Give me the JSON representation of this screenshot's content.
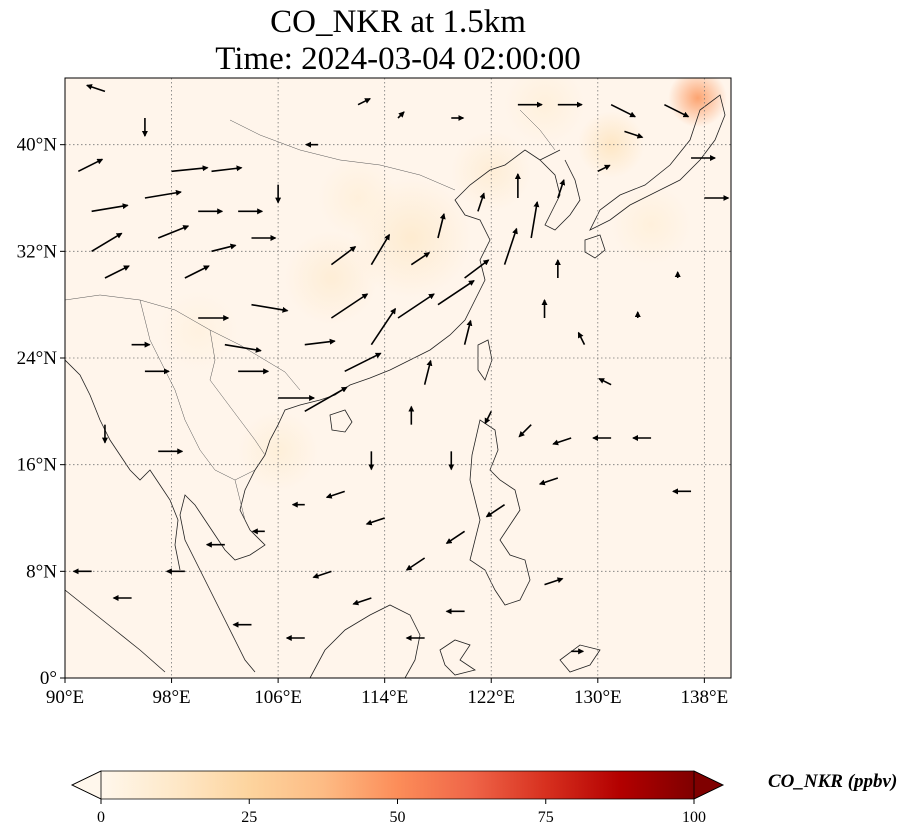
{
  "title": {
    "line1": "CO_NKR at 1.5km",
    "line2": "Time: 2024-03-04 02:00:00"
  },
  "map": {
    "projection": "PlateCarree",
    "lon_range": [
      90,
      140
    ],
    "lat_range": [
      0,
      45
    ],
    "gridline_style": "dotted gray",
    "coastlines": true,
    "background_color": "#fff5eb"
  },
  "axes": {
    "x_ticks": [
      "90°E",
      "98°E",
      "106°E",
      "114°E",
      "122°E",
      "130°E",
      "138°E"
    ],
    "y_ticks": [
      "0°",
      "8°N",
      "16°N",
      "24°N",
      "32°N",
      "40°N"
    ]
  },
  "colorbar": {
    "label": "CO_NKR (ppbv)",
    "ticks": [
      "0",
      "25",
      "50",
      "75",
      "100"
    ],
    "range": [
      0,
      100
    ],
    "colormap": "OrRd",
    "colors": [
      "#fff7ec",
      "#fee8c8",
      "#fdd49e",
      "#fdbb84",
      "#fc8d59",
      "#ef6548",
      "#d7301f",
      "#b30000",
      "#7f0000"
    ],
    "extend": "both"
  },
  "wind_field": {
    "description_units": "wind vectors at 1.5km",
    "vectors": [
      {
        "lon": 91,
        "lat": 38,
        "u": 2,
        "v": 1
      },
      {
        "lon": 92,
        "lat": 35,
        "u": 3,
        "v": 0.5
      },
      {
        "lon": 92,
        "lat": 32,
        "u": 2.5,
        "v": 1.5
      },
      {
        "lon": 93,
        "lat": 30,
        "u": 2,
        "v": 1
      },
      {
        "lon": 96,
        "lat": 36,
        "u": 3,
        "v": 0.5
      },
      {
        "lon": 97,
        "lat": 33,
        "u": 2.5,
        "v": 1
      },
      {
        "lon": 98,
        "lat": 38,
        "u": 3,
        "v": 0.3
      },
      {
        "lon": 100,
        "lat": 35,
        "u": 2,
        "v": 0
      },
      {
        "lon": 101,
        "lat": 38,
        "u": 2.5,
        "v": 0.3
      },
      {
        "lon": 103,
        "lat": 35,
        "u": 2,
        "v": 0
      },
      {
        "lon": 104,
        "lat": 33,
        "u": 2,
        "v": 0
      },
      {
        "lon": 101,
        "lat": 32,
        "u": 2,
        "v": 0.5
      },
      {
        "lon": 99,
        "lat": 30,
        "u": 2,
        "v": 1
      },
      {
        "lon": 100,
        "lat": 27,
        "u": 2.5,
        "v": 0
      },
      {
        "lon": 102,
        "lat": 25,
        "u": 3,
        "v": -0.5
      },
      {
        "lon": 104,
        "lat": 28,
        "u": 3,
        "v": -0.5
      },
      {
        "lon": 103,
        "lat": 23,
        "u": 2.5,
        "v": 0
      },
      {
        "lon": 106,
        "lat": 21,
        "u": 3,
        "v": 0
      },
      {
        "lon": 108,
        "lat": 25,
        "u": 2.5,
        "v": 0.3
      },
      {
        "lon": 110,
        "lat": 27,
        "u": 3,
        "v": 2
      },
      {
        "lon": 111,
        "lat": 23,
        "u": 3,
        "v": 1.5
      },
      {
        "lon": 108,
        "lat": 20,
        "u": 3.5,
        "v": 2
      },
      {
        "lon": 113,
        "lat": 25,
        "u": 2,
        "v": 3
      },
      {
        "lon": 115,
        "lat": 27,
        "u": 3,
        "v": 2
      },
      {
        "lon": 118,
        "lat": 28,
        "u": 3,
        "v": 2
      },
      {
        "lon": 120,
        "lat": 30,
        "u": 2,
        "v": 1.5
      },
      {
        "lon": 123,
        "lat": 31,
        "u": 1,
        "v": 3
      },
      {
        "lon": 125,
        "lat": 33,
        "u": 0.5,
        "v": 3
      },
      {
        "lon": 117,
        "lat": 22,
        "u": 0.5,
        "v": 2
      },
      {
        "lon": 120,
        "lat": 25,
        "u": 0.5,
        "v": 2
      },
      {
        "lon": 113,
        "lat": 31,
        "u": 1.5,
        "v": 2.5
      },
      {
        "lon": 110,
        "lat": 31,
        "u": 2,
        "v": 1.5
      },
      {
        "lon": 116,
        "lat": 31,
        "u": 1.5,
        "v": 1
      },
      {
        "lon": 118,
        "lat": 33,
        "u": 0.5,
        "v": 2
      },
      {
        "lon": 121,
        "lat": 35,
        "u": 0.5,
        "v": 1.5
      },
      {
        "lon": 124,
        "lat": 36,
        "u": 0,
        "v": 2
      },
      {
        "lon": 127,
        "lat": 36,
        "u": 0.5,
        "v": 1.5
      },
      {
        "lon": 130,
        "lat": 38,
        "u": 1,
        "v": 0.5
      },
      {
        "lon": 132,
        "lat": 41,
        "u": 1.5,
        "v": -0.5
      },
      {
        "lon": 135,
        "lat": 43,
        "u": 2,
        "v": -1
      },
      {
        "lon": 137,
        "lat": 39,
        "u": 2,
        "v": 0
      },
      {
        "lon": 138,
        "lat": 36,
        "u": 2,
        "v": 0
      },
      {
        "lon": 127,
        "lat": 30,
        "u": 0,
        "v": 1.5
      },
      {
        "lon": 126,
        "lat": 27,
        "u": 0,
        "v": 1.5
      },
      {
        "lon": 129,
        "lat": 25,
        "u": -0.5,
        "v": 1
      },
      {
        "lon": 116,
        "lat": 19,
        "u": 0,
        "v": 1.5
      },
      {
        "lon": 119,
        "lat": 17,
        "u": 0,
        "v": -1.5
      },
      {
        "lon": 113,
        "lat": 17,
        "u": 0,
        "v": -1.5
      },
      {
        "lon": 122,
        "lat": 20,
        "u": -0.5,
        "v": -1
      },
      {
        "lon": 125,
        "lat": 19,
        "u": -1,
        "v": -1
      },
      {
        "lon": 128,
        "lat": 18,
        "u": -1.5,
        "v": -0.5
      },
      {
        "lon": 131,
        "lat": 18,
        "u": -1.5,
        "v": 0
      },
      {
        "lon": 134,
        "lat": 18,
        "u": -1.5,
        "v": 0
      },
      {
        "lon": 137,
        "lat": 14,
        "u": -1.5,
        "v": 0
      },
      {
        "lon": 127,
        "lat": 15,
        "u": -1.5,
        "v": -0.5
      },
      {
        "lon": 123,
        "lat": 13,
        "u": -1.5,
        "v": -1
      },
      {
        "lon": 120,
        "lat": 11,
        "u": -1.5,
        "v": -1
      },
      {
        "lon": 117,
        "lat": 9,
        "u": -1.5,
        "v": -1
      },
      {
        "lon": 114,
        "lat": 12,
        "u": -1.5,
        "v": -0.5
      },
      {
        "lon": 111,
        "lat": 14,
        "u": -1.5,
        "v": -0.5
      },
      {
        "lon": 108,
        "lat": 13,
        "u": -1,
        "v": 0
      },
      {
        "lon": 105,
        "lat": 11,
        "u": -1,
        "v": 0
      },
      {
        "lon": 102,
        "lat": 10,
        "u": -1.5,
        "v": 0
      },
      {
        "lon": 99,
        "lat": 8,
        "u": -1.5,
        "v": 0
      },
      {
        "lon": 95,
        "lat": 6,
        "u": -1.5,
        "v": 0
      },
      {
        "lon": 92,
        "lat": 8,
        "u": -1.5,
        "v": 0
      },
      {
        "lon": 110,
        "lat": 8,
        "u": -1.5,
        "v": -0.5
      },
      {
        "lon": 113,
        "lat": 6,
        "u": -1.5,
        "v": -0.5
      },
      {
        "lon": 117,
        "lat": 3,
        "u": -1.5,
        "v": 0
      },
      {
        "lon": 120,
        "lat": 5,
        "u": -1.5,
        "v": 0
      },
      {
        "lon": 126,
        "lat": 7,
        "u": 1.5,
        "v": 0.5
      },
      {
        "lon": 128,
        "lat": 2,
        "u": 1,
        "v": 0
      },
      {
        "lon": 104,
        "lat": 4,
        "u": -1.5,
        "v": 0
      },
      {
        "lon": 108,
        "lat": 3,
        "u": -1.5,
        "v": 0
      },
      {
        "lon": 97,
        "lat": 17,
        "u": 2,
        "v": 0
      },
      {
        "lon": 93,
        "lat": 19,
        "u": 0,
        "v": -1.5
      },
      {
        "lon": 96,
        "lat": 23,
        "u": 2,
        "v": 0
      },
      {
        "lon": 95,
        "lat": 25,
        "u": 1.5,
        "v": 0
      },
      {
        "lon": 106,
        "lat": 37,
        "u": 0,
        "v": -1.5
      },
      {
        "lon": 109,
        "lat": 40,
        "u": -1,
        "v": 0
      },
      {
        "lon": 96,
        "lat": 42,
        "u": 0,
        "v": -1.5
      },
      {
        "lon": 93,
        "lat": 44,
        "u": -1.5,
        "v": 0.5
      },
      {
        "lon": 112,
        "lat": 43,
        "u": 1,
        "v": 0.5
      },
      {
        "lon": 115,
        "lat": 42,
        "u": 0.5,
        "v": 0.5
      },
      {
        "lon": 119,
        "lat": 42,
        "u": 1,
        "v": 0
      },
      {
        "lon": 124,
        "lat": 43,
        "u": 2,
        "v": 0
      },
      {
        "lon": 127,
        "lat": 43,
        "u": 2,
        "v": 0
      },
      {
        "lon": 131,
        "lat": 43,
        "u": 2,
        "v": -1
      },
      {
        "lon": 136,
        "lat": 30,
        "u": 0,
        "v": 0.5
      },
      {
        "lon": 133,
        "lat": 27,
        "u": 0,
        "v": 0.5
      },
      {
        "lon": 131,
        "lat": 22,
        "u": -1,
        "v": 0.5
      }
    ]
  },
  "co_field": {
    "hotspots": [
      {
        "lon": 137.5,
        "lat": 43.5,
        "value": 45,
        "spread": 2.2
      },
      {
        "lon": 131,
        "lat": 40,
        "value": 14,
        "spread": 2.5
      },
      {
        "lon": 116,
        "lat": 33,
        "value": 10,
        "spread": 4.5
      },
      {
        "lon": 110,
        "lat": 30,
        "value": 8,
        "spread": 3.5
      },
      {
        "lon": 122,
        "lat": 38,
        "value": 8,
        "spread": 3
      },
      {
        "lon": 106,
        "lat": 17,
        "value": 7,
        "spread": 3
      },
      {
        "lon": 126,
        "lat": 43,
        "value": 6,
        "spread": 3
      },
      {
        "lon": 134,
        "lat": 34,
        "value": 6,
        "spread": 3
      },
      {
        "lon": 100,
        "lat": 26,
        "value": 4,
        "spread": 3
      },
      {
        "lon": 112,
        "lat": 36,
        "value": 6,
        "spread": 3
      }
    ]
  }
}
